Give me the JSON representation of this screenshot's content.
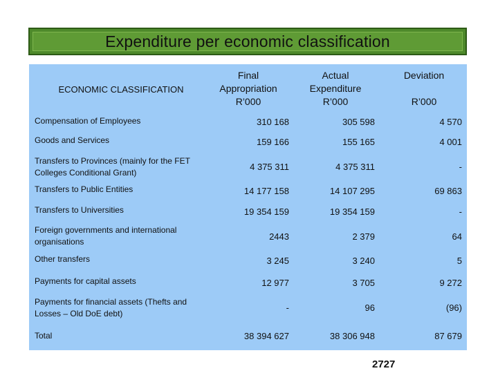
{
  "title": "Expenditure per economic classification",
  "headers": {
    "classification": "ECONOMIC CLASSIFICATION",
    "final": [
      "Final",
      "Appropriation",
      "R’000"
    ],
    "actual": [
      "Actual",
      "Expenditure",
      "R’000"
    ],
    "deviation": [
      "Deviation",
      "R’000"
    ]
  },
  "rows": [
    {
      "label": [
        "Compensation of Employees"
      ],
      "final": "310 168",
      "actual": "305 598",
      "deviation": "4 570"
    },
    {
      "label": [
        "Goods and Services"
      ],
      "final": "159 166",
      "actual": "155 165",
      "deviation": "4 001"
    },
    {
      "label": [
        "Transfers to Provinces (mainly for the FET",
        "Colleges Conditional Grant)"
      ],
      "final": "4 375 311",
      "actual": "4 375 311",
      "deviation": "-"
    },
    {
      "label": [
        "Transfers to Public Entities"
      ],
      "final": "14 177 158",
      "actual": "14 107 295",
      "deviation": "69 863"
    },
    {
      "label": [
        "Transfers to Universities"
      ],
      "final": "19 354 159",
      "actual": "19 354 159",
      "deviation": "-"
    },
    {
      "label": [
        "Foreign governments and international",
        "organisations"
      ],
      "final": "2443",
      "actual": "2 379",
      "deviation": "64"
    },
    {
      "label": [
        "Other transfers"
      ],
      "final": "3 245",
      "actual": "3 240",
      "deviation": "5"
    },
    {
      "label": [
        "Payments for capital assets"
      ],
      "final": "12 977",
      "actual": "3 705",
      "deviation": "9 272"
    },
    {
      "label": [
        "Payments for financial assets (Thefts and",
        "Losses – Old DoE debt)"
      ],
      "final": "-",
      "actual": "96",
      "deviation": "(96)"
    },
    {
      "label": [
        "Total"
      ],
      "final": "38 394 627",
      "actual": "38 306 948",
      "deviation": "87 679"
    }
  ],
  "page_number": "2727"
}
